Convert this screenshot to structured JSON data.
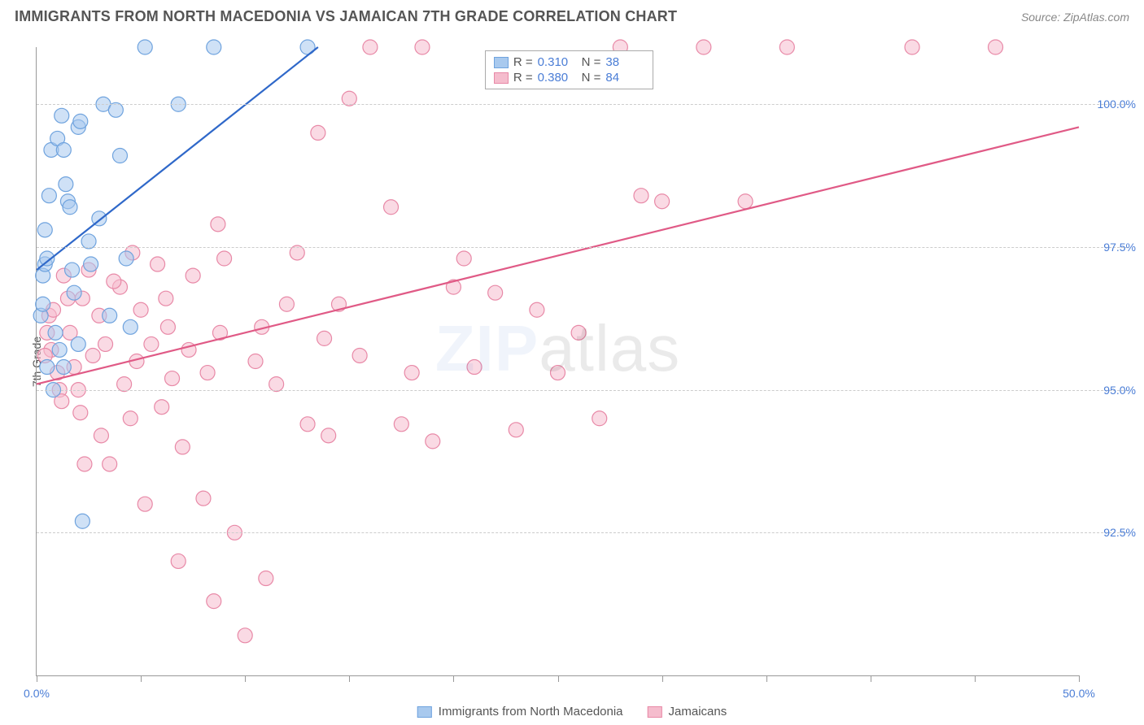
{
  "chart": {
    "title": "IMMIGRANTS FROM NORTH MACEDONIA VS JAMAICAN 7TH GRADE CORRELATION CHART",
    "source": "Source: ZipAtlas.com",
    "type": "scatter",
    "ylabel": "7th Grade",
    "watermark_zip": "ZIP",
    "watermark_rest": "atlas",
    "xlim": [
      0,
      50
    ],
    "ylim": [
      90,
      101
    ],
    "yticks": [
      {
        "v": 92.5,
        "label": "92.5%"
      },
      {
        "v": 95.0,
        "label": "95.0%"
      },
      {
        "v": 97.5,
        "label": "97.5%"
      },
      {
        "v": 100.0,
        "label": "100.0%"
      }
    ],
    "xticks": [
      0,
      5,
      10,
      15,
      20,
      25,
      30,
      35,
      40,
      45,
      50
    ],
    "xtick_labels": [
      {
        "v": 0,
        "label": "0.0%"
      },
      {
        "v": 50,
        "label": "50.0%"
      }
    ],
    "background_color": "#ffffff",
    "grid_color": "#cccccc",
    "axis_color": "#999999",
    "tick_label_color": "#4a7dd6",
    "series": [
      {
        "name": "Immigrants from North Macedonia",
        "color_fill": "#a8c9ee",
        "color_stroke": "#6fa3de",
        "fill_opacity": 0.55,
        "marker_radius": 9,
        "R_label": "R =",
        "R": "0.310",
        "N_label": "N =",
        "N": "38",
        "trend": {
          "x1": 0,
          "y1": 97.1,
          "x2": 13.5,
          "y2": 101.0,
          "stroke": "#2f68c9",
          "width": 2.2
        },
        "points": [
          [
            0.2,
            96.3
          ],
          [
            0.3,
            96.5
          ],
          [
            0.3,
            97.0
          ],
          [
            0.4,
            97.2
          ],
          [
            0.5,
            97.3
          ],
          [
            0.6,
            98.4
          ],
          [
            0.7,
            99.2
          ],
          [
            1.0,
            99.4
          ],
          [
            1.2,
            99.8
          ],
          [
            1.3,
            99.2
          ],
          [
            1.4,
            98.6
          ],
          [
            1.5,
            98.3
          ],
          [
            1.6,
            98.2
          ],
          [
            2.0,
            99.6
          ],
          [
            2.1,
            99.7
          ],
          [
            0.9,
            96.0
          ],
          [
            1.1,
            95.7
          ],
          [
            1.7,
            97.1
          ],
          [
            1.8,
            96.7
          ],
          [
            2.5,
            97.6
          ],
          [
            2.6,
            97.2
          ],
          [
            2.0,
            95.8
          ],
          [
            3.0,
            98.0
          ],
          [
            3.2,
            100.0
          ],
          [
            3.8,
            99.9
          ],
          [
            4.0,
            99.1
          ],
          [
            4.3,
            97.3
          ],
          [
            4.5,
            96.1
          ],
          [
            5.2,
            101.0
          ],
          [
            6.8,
            100.0
          ],
          [
            8.5,
            101.0
          ],
          [
            0.5,
            95.4
          ],
          [
            0.8,
            95.0
          ],
          [
            1.3,
            95.4
          ],
          [
            2.2,
            92.7
          ],
          [
            13.0,
            101.0
          ],
          [
            3.5,
            96.3
          ],
          [
            0.4,
            97.8
          ]
        ]
      },
      {
        "name": "Jamaicans",
        "color_fill": "#f5bccd",
        "color_stroke": "#e889a7",
        "fill_opacity": 0.55,
        "marker_radius": 9,
        "R_label": "R =",
        "R": "0.380",
        "N_label": "N =",
        "N": "84",
        "trend": {
          "x1": 0,
          "y1": 95.1,
          "x2": 50,
          "y2": 99.6,
          "stroke": "#e05a86",
          "width": 2.2
        },
        "points": [
          [
            0.5,
            96.0
          ],
          [
            0.6,
            96.3
          ],
          [
            0.8,
            96.4
          ],
          [
            0.7,
            95.7
          ],
          [
            1.0,
            95.3
          ],
          [
            1.1,
            95.0
          ],
          [
            1.2,
            94.8
          ],
          [
            1.5,
            96.6
          ],
          [
            1.6,
            96.0
          ],
          [
            1.8,
            95.4
          ],
          [
            2.0,
            95.0
          ],
          [
            2.1,
            94.6
          ],
          [
            2.2,
            96.6
          ],
          [
            2.5,
            97.1
          ],
          [
            2.7,
            95.6
          ],
          [
            3.0,
            96.3
          ],
          [
            3.1,
            94.2
          ],
          [
            3.3,
            95.8
          ],
          [
            3.5,
            93.7
          ],
          [
            4.0,
            96.8
          ],
          [
            4.2,
            95.1
          ],
          [
            4.5,
            94.5
          ],
          [
            4.8,
            95.5
          ],
          [
            5.0,
            96.4
          ],
          [
            5.2,
            93.0
          ],
          [
            5.5,
            95.8
          ],
          [
            5.8,
            97.2
          ],
          [
            6.0,
            94.7
          ],
          [
            6.2,
            96.6
          ],
          [
            6.5,
            95.2
          ],
          [
            6.8,
            92.0
          ],
          [
            7.0,
            94.0
          ],
          [
            7.3,
            95.7
          ],
          [
            7.5,
            97.0
          ],
          [
            8.0,
            93.1
          ],
          [
            8.2,
            95.3
          ],
          [
            8.5,
            91.3
          ],
          [
            8.8,
            96.0
          ],
          [
            9.0,
            97.3
          ],
          [
            9.5,
            92.5
          ],
          [
            10.0,
            90.7
          ],
          [
            10.5,
            95.5
          ],
          [
            11.0,
            91.7
          ],
          [
            11.5,
            95.1
          ],
          [
            12.0,
            96.5
          ],
          [
            12.5,
            97.4
          ],
          [
            13.0,
            94.4
          ],
          [
            13.5,
            99.5
          ],
          [
            14.0,
            94.2
          ],
          [
            14.5,
            96.5
          ],
          [
            15.0,
            100.1
          ],
          [
            15.5,
            95.6
          ],
          [
            16.0,
            101.0
          ],
          [
            17.0,
            98.2
          ],
          [
            17.5,
            94.4
          ],
          [
            18.0,
            95.3
          ],
          [
            18.5,
            101.0
          ],
          [
            19.0,
            94.1
          ],
          [
            20.0,
            96.8
          ],
          [
            20.5,
            97.3
          ],
          [
            21.0,
            95.4
          ],
          [
            22.0,
            96.7
          ],
          [
            23.0,
            94.3
          ],
          [
            24.0,
            96.4
          ],
          [
            25.0,
            95.3
          ],
          [
            26.0,
            96.0
          ],
          [
            27.0,
            94.5
          ],
          [
            28.0,
            101.0
          ],
          [
            29.0,
            98.4
          ],
          [
            30.0,
            98.3
          ],
          [
            32.0,
            101.0
          ],
          [
            34.0,
            98.3
          ],
          [
            36.0,
            101.0
          ],
          [
            42.0,
            101.0
          ],
          [
            46.0,
            101.0
          ],
          [
            2.3,
            93.7
          ],
          [
            3.7,
            96.9
          ],
          [
            6.3,
            96.1
          ],
          [
            8.7,
            97.9
          ],
          [
            10.8,
            96.1
          ],
          [
            13.8,
            95.9
          ],
          [
            1.3,
            97.0
          ],
          [
            4.6,
            97.4
          ],
          [
            0.4,
            95.6
          ]
        ]
      }
    ],
    "legend_bottom": [
      {
        "swatch_fill": "#a8c9ee",
        "swatch_stroke": "#6fa3de",
        "label": "Immigrants from North Macedonia"
      },
      {
        "swatch_fill": "#f5bccd",
        "swatch_stroke": "#e889a7",
        "label": "Jamaicans"
      }
    ]
  }
}
